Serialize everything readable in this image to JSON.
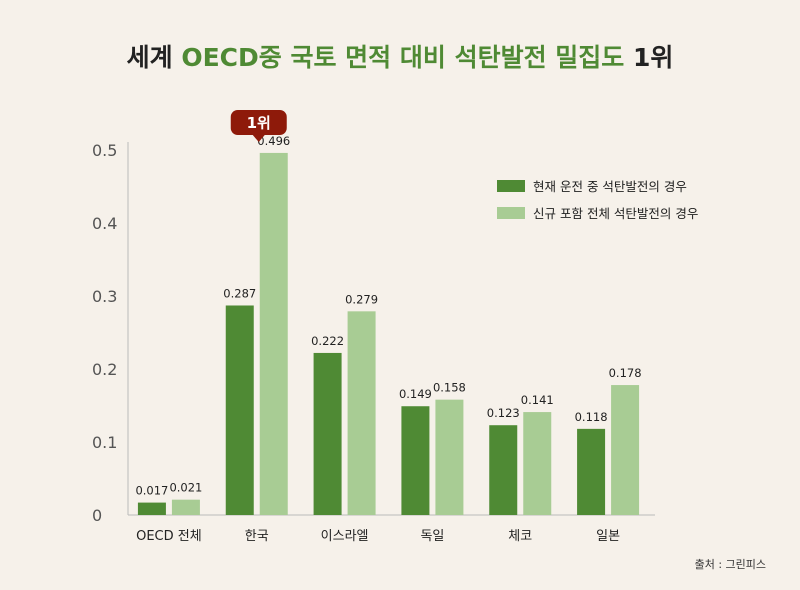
{
  "title": {
    "pre": "세계 ",
    "accent": "OECD중 국토 면적 대비 석탄발전 밀집도",
    "post": " 1위"
  },
  "badge": "1위",
  "source": "출처 : 그린피스",
  "colors": {
    "current": "#4f8a34",
    "new": "#a8cc94",
    "badge": "#8e1a0a",
    "axis": "#bbbbbb"
  },
  "chart_data": {
    "type": "bar",
    "categories": [
      "OECD 전체",
      "한국",
      "이스라엘",
      "독일",
      "체코",
      "일본"
    ],
    "series": [
      {
        "name": "현재 운전 중 석탄발전의 경우",
        "values": [
          0.017,
          0.287,
          0.222,
          0.149,
          0.123,
          0.118
        ]
      },
      {
        "name": "신규 포함 전체 석탄발전의 경우",
        "values": [
          0.021,
          0.496,
          0.279,
          0.158,
          0.141,
          0.178
        ]
      }
    ],
    "value_labels": [
      [
        "0.017",
        "0.287",
        "0.222",
        "0.149",
        "0.123",
        "0.118"
      ],
      [
        "0.021",
        "0.496",
        "0.279",
        "0.158",
        "0.141",
        "0.178"
      ]
    ],
    "ylim": [
      0,
      0.5
    ],
    "yticks": [
      "0",
      "0.1",
      "0.2",
      "0.3",
      "0.4",
      "0.5"
    ],
    "legend_position": "top-right",
    "grid": false,
    "highlight": {
      "category": "한국",
      "label": "1위"
    }
  }
}
